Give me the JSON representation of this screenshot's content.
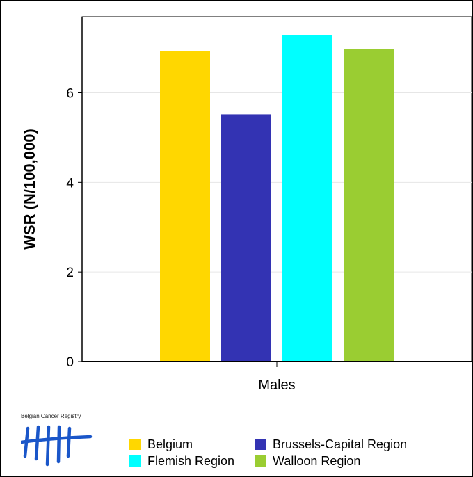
{
  "chart_data": {
    "type": "bar",
    "categories": [
      "Males"
    ],
    "series": [
      {
        "name": "Belgium",
        "values": [
          6.93
        ],
        "color": "#FFD700"
      },
      {
        "name": "Brussels-Capital Region",
        "values": [
          5.52
        ],
        "color": "#3333B3"
      },
      {
        "name": "Flemish Region",
        "values": [
          7.29
        ],
        "color": "#00FFFF"
      },
      {
        "name": "Walloon Region",
        "values": [
          6.98
        ],
        "color": "#9ACD32"
      }
    ],
    "ylabel": "WSR (N/100,000)",
    "xlabel": "",
    "ylim": [
      0,
      7.7
    ],
    "yticks": [
      0,
      2,
      4,
      6
    ],
    "grid": true,
    "legend_position": "bottom"
  },
  "logo": {
    "text": "Belgian Cancer Registry",
    "color": "#1a56c9"
  }
}
